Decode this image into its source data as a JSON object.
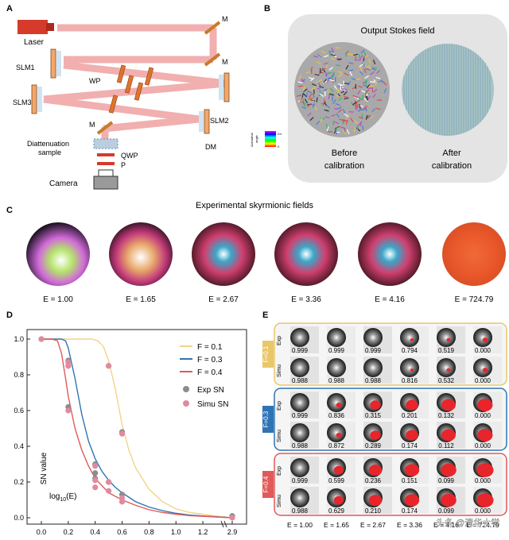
{
  "panels": {
    "a": {
      "letter": "A",
      "labels": {
        "laser": "Laser",
        "m1": "M",
        "m2": "M",
        "m3": "M",
        "slm1": "SLM1",
        "slm2": "SLM2",
        "slm3": "SLM3",
        "wp": "WP",
        "dm": "DM",
        "sample_line1": "Diattenuation",
        "sample_line2": "sample",
        "qwp": "QWP",
        "p": "P",
        "camera": "Camera"
      },
      "colorwheel_label_1": "Azimuthal",
      "colorwheel_label_2": "angle",
      "colorwheel_tick_top": "2π",
      "colorwheel_tick_bottom": "0"
    },
    "b": {
      "letter": "B",
      "title": "Output Stokes field",
      "before_line1": "Before",
      "before_line2": "calibration",
      "after_line1": "After",
      "after_line2": "calibration"
    },
    "c": {
      "letter": "C",
      "title": "Experimental skyrmionic fields",
      "fields": [
        {
          "label": "E = 1.00"
        },
        {
          "label": "E = 1.65"
        },
        {
          "label": "E = 2.67"
        },
        {
          "label": "E = 3.36"
        },
        {
          "label": "E = 4.16"
        },
        {
          "label": "E = 724.79"
        }
      ]
    },
    "d": {
      "letter": "D"
    },
    "e": {
      "letter": "E",
      "groups": [
        {
          "f_label": "F=0.1",
          "color": "#e8c66a",
          "exp": [
            "0.999",
            "0.999",
            "0.999",
            "0.794",
            "0.519",
            "0.000"
          ],
          "simu": [
            "0.988",
            "0.988",
            "0.988",
            "0.816",
            "0.532",
            "0.000"
          ],
          "red": [
            0,
            0,
            0,
            0.08,
            0.12,
            0.18
          ]
        },
        {
          "f_label": "F=0.3",
          "color": "#2e74b5",
          "exp": [
            "0.999",
            "0.836",
            "0.315",
            "0.201",
            "0.132",
            "0.000"
          ],
          "simu": [
            "0.988",
            "0.872",
            "0.289",
            "0.174",
            "0.112",
            "0.000"
          ],
          "red": [
            0,
            0.2,
            0.5,
            0.6,
            0.7,
            0.75
          ]
        },
        {
          "f_label": "F=0.4",
          "color": "#e05a5a",
          "exp": [
            "0.999",
            "0.599",
            "0.236",
            "0.151",
            "0.099",
            "0.000"
          ],
          "simu": [
            "0.988",
            "0.629",
            "0.210",
            "0.174",
            "0.099",
            "0.000"
          ],
          "red": [
            0,
            0.45,
            0.65,
            0.72,
            0.78,
            0.85
          ]
        }
      ],
      "row_labels": {
        "exp": "Exp",
        "simu": "Simu"
      },
      "e_labels": [
        "E = 1.00",
        "E = 1.65",
        "E = 2.67",
        "E = 3.36",
        "E = 4.16",
        "E = 724.79"
      ]
    }
  },
  "watermark": "头条 @清华大学",
  "chart_data": {
    "type": "line",
    "ylabel": "SN value",
    "xlabel": "log10(E)",
    "xlabel_main": "log",
    "xlabel_sub": "10",
    "xlabel_tail": "(E)",
    "x_ticks": [
      "0.0",
      "0.2",
      "0.4",
      "0.6",
      "0.8",
      "1.0",
      "1.2",
      "2.9"
    ],
    "x_tick_values": [
      0,
      0.2,
      0.4,
      0.6,
      0.8,
      1.0,
      1.2,
      2.9
    ],
    "y_ticks": [
      "0.0",
      "0.2",
      "0.4",
      "0.6",
      "0.8",
      "1.0"
    ],
    "y_tick_values": [
      0,
      0.2,
      0.4,
      0.6,
      0.8,
      1.0
    ],
    "xlim": [
      -0.1,
      2.95
    ],
    "ylim": [
      -0.04,
      1.06
    ],
    "x_break": true,
    "legend_position": "top-right",
    "series": [
      {
        "name": "F = 0.1",
        "color": "#f2d48a",
        "x": [
          0.0,
          0.1,
          0.2,
          0.3,
          0.38,
          0.42,
          0.46,
          0.5,
          0.55,
          0.6,
          0.65,
          0.7,
          0.8,
          0.9,
          1.0,
          1.1,
          1.2,
          1.3,
          2.9
        ],
        "y": [
          1.0,
          1.0,
          1.0,
          1.0,
          1.0,
          0.99,
          0.96,
          0.88,
          0.72,
          0.52,
          0.38,
          0.28,
          0.16,
          0.09,
          0.05,
          0.03,
          0.02,
          0.01,
          0.0
        ]
      },
      {
        "name": "F = 0.3",
        "color": "#2e74b5",
        "x": [
          0.0,
          0.1,
          0.15,
          0.18,
          0.2,
          0.25,
          0.3,
          0.35,
          0.4,
          0.45,
          0.5,
          0.55,
          0.6,
          0.7,
          0.8,
          0.9,
          1.0,
          1.1,
          1.2,
          1.3,
          2.9
        ],
        "y": [
          1.0,
          1.0,
          1.0,
          0.99,
          0.95,
          0.78,
          0.58,
          0.43,
          0.33,
          0.26,
          0.21,
          0.17,
          0.14,
          0.09,
          0.06,
          0.04,
          0.025,
          0.015,
          0.01,
          0.005,
          0.0
        ]
      },
      {
        "name": "F = 0.4",
        "color": "#e05a5a",
        "x": [
          0.0,
          0.08,
          0.12,
          0.15,
          0.18,
          0.2,
          0.25,
          0.3,
          0.35,
          0.4,
          0.45,
          0.5,
          0.55,
          0.6,
          0.7,
          0.8,
          0.9,
          1.0,
          1.1,
          1.2,
          1.3,
          2.9
        ],
        "y": [
          1.0,
          1.0,
          0.99,
          0.92,
          0.78,
          0.68,
          0.5,
          0.38,
          0.29,
          0.22,
          0.18,
          0.14,
          0.12,
          0.1,
          0.07,
          0.045,
          0.03,
          0.02,
          0.012,
          0.008,
          0.004,
          0.0
        ]
      }
    ],
    "points": [
      {
        "name": "Exp SN",
        "color": "#8c8c8c",
        "x": [
          0.0,
          0.2,
          0.2,
          0.4,
          0.4,
          0.5,
          0.6,
          0.6,
          0.2,
          0.4,
          0.5,
          0.6,
          2.9
        ],
        "y": [
          1.0,
          0.88,
          0.62,
          0.3,
          0.22,
          0.2,
          0.48,
          0.13,
          0.85,
          0.25,
          0.85,
          0.09,
          0.01
        ]
      },
      {
        "name": "Simu SN",
        "color": "#e08aa0",
        "x": [
          0.0,
          0.2,
          0.2,
          0.2,
          0.4,
          0.4,
          0.4,
          0.5,
          0.5,
          0.5,
          0.6,
          0.6,
          0.6,
          2.9
        ],
        "y": [
          1.0,
          0.87,
          0.85,
          0.6,
          0.29,
          0.21,
          0.17,
          0.85,
          0.2,
          0.15,
          0.47,
          0.11,
          0.09,
          0.0
        ]
      }
    ]
  }
}
